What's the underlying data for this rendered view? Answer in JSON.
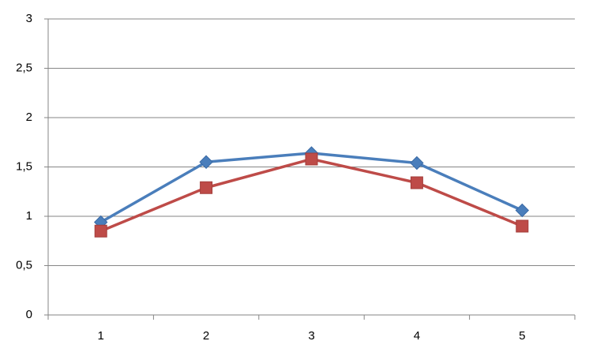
{
  "chart_data": {
    "type": "line",
    "categories": [
      "1",
      "2",
      "3",
      "4",
      "5"
    ],
    "series": [
      {
        "color": "#4a7ebb",
        "marker": "diamond",
        "values": [
          0.94,
          1.55,
          1.64,
          1.54,
          1.06
        ]
      },
      {
        "color": "#be4b48",
        "marker": "square",
        "values": [
          0.85,
          1.29,
          1.58,
          1.34,
          0.9
        ]
      }
    ],
    "ylim": [
      0,
      3
    ],
    "yticks": [
      0,
      {
        "value": 0.5,
        "label": "0,5"
      },
      1,
      {
        "value": 1.5,
        "label": "1,5"
      },
      2,
      {
        "value": 2.5,
        "label": "2,5"
      },
      3
    ],
    "grid": true
  }
}
